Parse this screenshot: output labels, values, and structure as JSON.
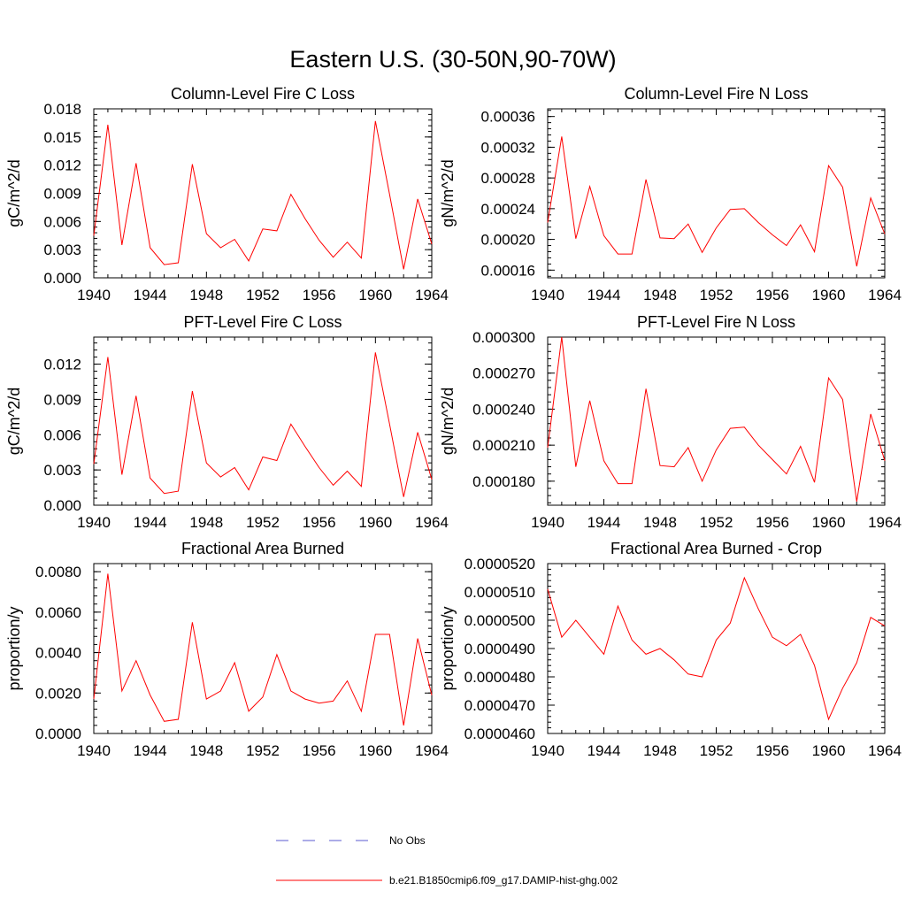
{
  "figure_title": "Eastern U.S. (30-50N,90-70W)",
  "legend": {
    "items": [
      {
        "label": "No Obs",
        "color": "#5a5ad0",
        "dash": true
      },
      {
        "label": "b.e21.B1850cmip6.f09_g17.DAMIP-hist-ghg.002",
        "color": "#ff0000",
        "dash": false
      }
    ]
  },
  "chart_data": [
    {
      "type": "line",
      "title": "Column-Level Fire C Loss",
      "ylabel": "gC/m^2/d",
      "xlim": [
        1940,
        1964
      ],
      "ylim": [
        0,
        0.018
      ],
      "xticks": [
        "1940",
        "1944",
        "1948",
        "1952",
        "1956",
        "1960",
        "1964"
      ],
      "yticks": [
        "0.000",
        "0.003",
        "0.006",
        "0.009",
        "0.012",
        "0.015",
        "0.018"
      ],
      "x": [
        1940,
        1941,
        1942,
        1943,
        1944,
        1945,
        1946,
        1947,
        1948,
        1949,
        1950,
        1951,
        1952,
        1953,
        1954,
        1955,
        1956,
        1957,
        1958,
        1959,
        1960,
        1961,
        1962,
        1963,
        1964
      ],
      "series": [
        {
          "color": "#ff0000",
          "values": [
            0.0045,
            0.0163,
            0.0035,
            0.0122,
            0.0032,
            0.0014,
            0.0016,
            0.0121,
            0.0047,
            0.0032,
            0.0041,
            0.0018,
            0.0052,
            0.005,
            0.0089,
            0.0063,
            0.004,
            0.0022,
            0.0038,
            0.0021,
            0.0167,
            0.0089,
            0.0009,
            0.0084,
            0.0036
          ]
        }
      ]
    },
    {
      "type": "line",
      "title": "Column-Level Fire N Loss",
      "ylabel": "gN/m^2/d",
      "xlim": [
        1940,
        1964
      ],
      "ylim": [
        0.00015,
        0.00037
      ],
      "xticks": [
        "1940",
        "1944",
        "1948",
        "1952",
        "1956",
        "1960",
        "1964"
      ],
      "yticks": [
        "0.00016",
        "0.00020",
        "0.00024",
        "0.00028",
        "0.00032",
        "0.00036"
      ],
      "x": [
        1940,
        1941,
        1942,
        1943,
        1944,
        1945,
        1946,
        1947,
        1948,
        1949,
        1950,
        1951,
        1952,
        1953,
        1954,
        1955,
        1956,
        1957,
        1958,
        1959,
        1960,
        1961,
        1962,
        1963,
        1964
      ],
      "series": [
        {
          "color": "#ff0000",
          "values": [
            0.000222,
            0.000334,
            0.000201,
            0.000269,
            0.000205,
            0.000181,
            0.000181,
            0.000278,
            0.000202,
            0.000201,
            0.00022,
            0.000183,
            0.000215,
            0.000239,
            0.00024,
            0.000222,
            0.000206,
            0.000192,
            0.000219,
            0.000184,
            0.000296,
            0.000268,
            0.000165,
            0.000254,
            0.000207
          ]
        }
      ]
    },
    {
      "type": "line",
      "title": "PFT-Level Fire C Loss",
      "ylabel": "gC/m^2/d",
      "xlim": [
        1940,
        1964
      ],
      "ylim": [
        0,
        0.0143
      ],
      "xticks": [
        "1940",
        "1944",
        "1948",
        "1952",
        "1956",
        "1960",
        "1964"
      ],
      "yticks": [
        "0.000",
        "0.003",
        "0.006",
        "0.009",
        "0.012"
      ],
      "x": [
        1940,
        1941,
        1942,
        1943,
        1944,
        1945,
        1946,
        1947,
        1948,
        1949,
        1950,
        1951,
        1952,
        1953,
        1954,
        1955,
        1956,
        1957,
        1958,
        1959,
        1960,
        1961,
        1962,
        1963,
        1964
      ],
      "series": [
        {
          "color": "#ff0000",
          "values": [
            0.0035,
            0.0126,
            0.0026,
            0.0093,
            0.0023,
            0.001,
            0.0012,
            0.0097,
            0.0036,
            0.0024,
            0.0032,
            0.0013,
            0.0041,
            0.0038,
            0.0069,
            0.005,
            0.0032,
            0.0017,
            0.0029,
            0.0016,
            0.013,
            0.0069,
            0.0007,
            0.0062,
            0.0022
          ]
        }
      ]
    },
    {
      "type": "line",
      "title": "PFT-Level Fire N Loss",
      "ylabel": "gN/m^2/d",
      "xlim": [
        1940,
        1964
      ],
      "ylim": [
        0.00016,
        0.0003
      ],
      "xticks": [
        "1940",
        "1944",
        "1948",
        "1952",
        "1956",
        "1960",
        "1964"
      ],
      "yticks": [
        "0.000180",
        "0.000210",
        "0.000240",
        "0.000270",
        "0.000300"
      ],
      "x": [
        1940,
        1941,
        1942,
        1943,
        1944,
        1945,
        1946,
        1947,
        1948,
        1949,
        1950,
        1951,
        1952,
        1953,
        1954,
        1955,
        1956,
        1957,
        1958,
        1959,
        1960,
        1961,
        1962,
        1963,
        1964
      ],
      "series": [
        {
          "color": "#ff0000",
          "values": [
            0.000208,
            0.0003,
            0.000192,
            0.000247,
            0.000197,
            0.000178,
            0.000178,
            0.000257,
            0.000193,
            0.000192,
            0.000208,
            0.00018,
            0.000206,
            0.000224,
            0.000225,
            0.00021,
            0.000198,
            0.000186,
            0.000209,
            0.000179,
            0.000266,
            0.000248,
            0.000163,
            0.000236,
            0.000197
          ]
        }
      ]
    },
    {
      "type": "line",
      "title": "Fractional Area Burned",
      "ylabel": "proportion/y",
      "xlim": [
        1940,
        1964
      ],
      "ylim": [
        0,
        0.0084
      ],
      "xticks": [
        "1940",
        "1944",
        "1948",
        "1952",
        "1956",
        "1960",
        "1964"
      ],
      "yticks": [
        "0.0000",
        "0.0020",
        "0.0040",
        "0.0060",
        "0.0080"
      ],
      "x": [
        1940,
        1941,
        1942,
        1943,
        1944,
        1945,
        1946,
        1947,
        1948,
        1949,
        1950,
        1951,
        1952,
        1953,
        1954,
        1955,
        1956,
        1957,
        1958,
        1959,
        1960,
        1961,
        1962,
        1963,
        1964
      ],
      "series": [
        {
          "color": "#ff0000",
          "values": [
            0.0017,
            0.0079,
            0.0021,
            0.0036,
            0.0019,
            0.0006,
            0.0007,
            0.0055,
            0.0017,
            0.0021,
            0.0035,
            0.0011,
            0.0018,
            0.0039,
            0.0021,
            0.0017,
            0.0015,
            0.0016,
            0.0026,
            0.0011,
            0.0049,
            0.0049,
            0.0004,
            0.0047,
            0.0019
          ]
        }
      ]
    },
    {
      "type": "line",
      "title": "Fractional Area Burned - Crop",
      "ylabel": "proportion/y",
      "xlim": [
        1940,
        1964
      ],
      "ylim": [
        4.6e-05,
        5.2e-05
      ],
      "xticks": [
        "1940",
        "1944",
        "1948",
        "1952",
        "1956",
        "1960",
        "1964"
      ],
      "yticks": [
        "0.0000460",
        "0.0000470",
        "0.0000480",
        "0.0000490",
        "0.0000500",
        "0.0000510",
        "0.0000520"
      ],
      "x": [
        1940,
        1941,
        1942,
        1943,
        1944,
        1945,
        1946,
        1947,
        1948,
        1949,
        1950,
        1951,
        1952,
        1953,
        1954,
        1955,
        1956,
        1957,
        1958,
        1959,
        1960,
        1961,
        1962,
        1963,
        1964
      ],
      "series": [
        {
          "color": "#ff0000",
          "values": [
            5.11e-05,
            4.94e-05,
            5e-05,
            4.94e-05,
            4.88e-05,
            5.05e-05,
            4.93e-05,
            4.88e-05,
            4.9e-05,
            4.86e-05,
            4.81e-05,
            4.8e-05,
            4.93e-05,
            4.99e-05,
            5.15e-05,
            5.04e-05,
            4.94e-05,
            4.91e-05,
            4.95e-05,
            4.84e-05,
            4.65e-05,
            4.76e-05,
            4.85e-05,
            5.01e-05,
            4.98e-05
          ]
        }
      ]
    }
  ]
}
